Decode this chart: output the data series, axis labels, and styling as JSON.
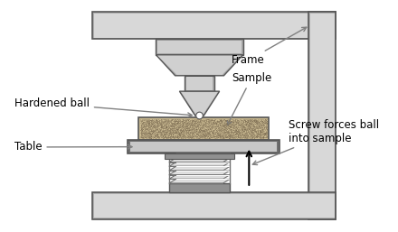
{
  "bg_color": "#ffffff",
  "frame_fill": "#b0b0b0",
  "frame_inner": "#d8d8d8",
  "frame_border": "#555555",
  "steel_light": "#d0d0d0",
  "steel_mid": "#a8a8a8",
  "steel_dark": "#707070",
  "steel_darker": "#505050",
  "sample_fill": "#c8b890",
  "table_fill": "#909090",
  "table_light": "#c8c8c8",
  "spring_light": "#e0e0e0",
  "spring_dark": "#707070",
  "text_color": "#000000",
  "arrow_color": "#808080",
  "labels": {
    "hardened_ball": "Hardened ball",
    "frame": "Frame",
    "sample": "Sample",
    "table": "Table",
    "screw": "Screw forces ball\ninto sample"
  },
  "figsize": [
    4.4,
    2.57
  ],
  "dpi": 100
}
